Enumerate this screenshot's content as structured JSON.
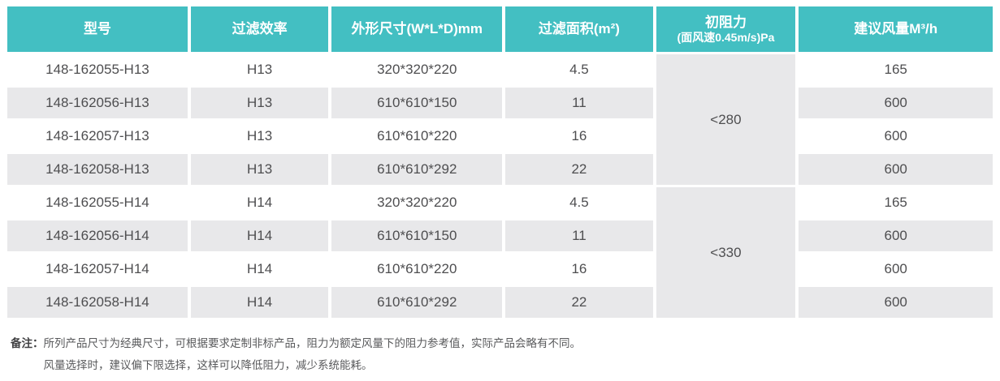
{
  "table": {
    "header": {
      "model": "型号",
      "efficiency": "过滤效率",
      "dimensions": "外形尺寸(W*L*D)mm",
      "area": "过滤面积(m²)",
      "resistance_line1": "初阻力",
      "resistance_line2": "(面风速0.45m/s)Pa",
      "airflow": "建议风量M³/h"
    },
    "groups": [
      {
        "resistance": "<280",
        "rows": [
          {
            "model": "148-162055-H13",
            "efficiency": "H13",
            "dimensions": "320*320*220",
            "area": "4.5",
            "airflow": "165"
          },
          {
            "model": "148-162056-H13",
            "efficiency": "H13",
            "dimensions": "610*610*150",
            "area": "11",
            "airflow": "600"
          },
          {
            "model": "148-162057-H13",
            "efficiency": "H13",
            "dimensions": "610*610*220",
            "area": "16",
            "airflow": "600"
          },
          {
            "model": "148-162058-H13",
            "efficiency": "H13",
            "dimensions": "610*610*292",
            "area": "22",
            "airflow": "600"
          }
        ]
      },
      {
        "resistance": "<330",
        "rows": [
          {
            "model": "148-162055-H14",
            "efficiency": "H14",
            "dimensions": "320*320*220",
            "area": "4.5",
            "airflow": "165"
          },
          {
            "model": "148-162056-H14",
            "efficiency": "H14",
            "dimensions": "610*610*150",
            "area": "11",
            "airflow": "600"
          },
          {
            "model": "148-162057-H14",
            "efficiency": "H14",
            "dimensions": "610*610*220",
            "area": "16",
            "airflow": "600"
          },
          {
            "model": "148-162058-H14",
            "efficiency": "H14",
            "dimensions": "610*610*292",
            "area": "22",
            "airflow": "600"
          }
        ]
      }
    ]
  },
  "notes": {
    "label": "备注：",
    "line1": "所列产品尺寸为经典尺寸，可根据要求定制非标产品，阻力为额定风量下的阻力参考值，实际产品会略有不同。",
    "line2": "风量选择时，建议偏下限选择，这样可以降低阻力，减少系统能耗。"
  },
  "colors": {
    "header_bg": "#43BFC2",
    "alt_row_bg": "#E8E8EA",
    "header_text": "#FFFFFF",
    "cell_text": "#4E4E50"
  }
}
